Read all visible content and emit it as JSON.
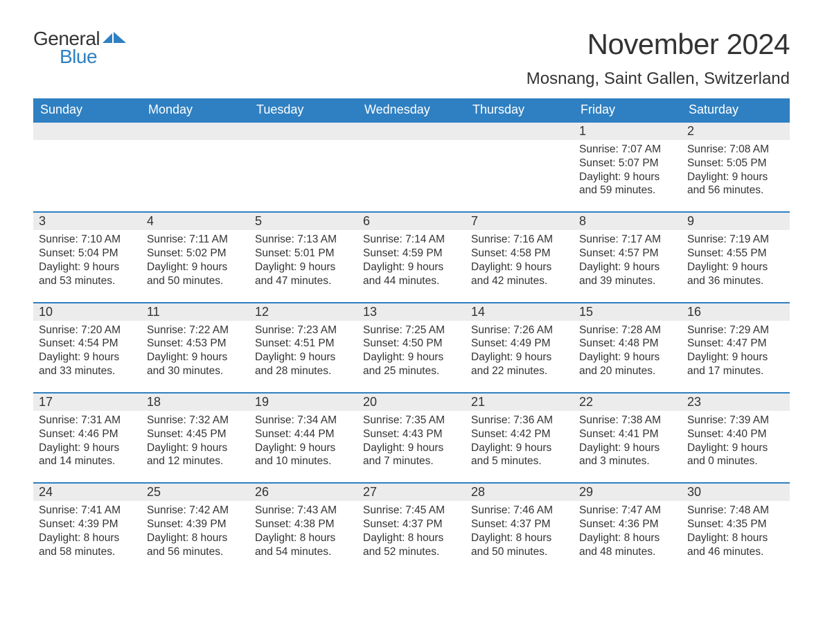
{
  "logo": {
    "general": "General",
    "blue": "Blue",
    "flag_color": "#2f80c2"
  },
  "title": "November 2024",
  "location": "Mosnang, Saint Gallen, Switzerland",
  "weekdays": [
    "Sunday",
    "Monday",
    "Tuesday",
    "Wednesday",
    "Thursday",
    "Friday",
    "Saturday"
  ],
  "colors": {
    "header_bg": "#2f80c2",
    "header_text": "#ffffff",
    "daynum_bg": "#ececec",
    "text": "#333333",
    "page_bg": "#ffffff",
    "row_border": "#2f80c2"
  },
  "typography": {
    "title_fontsize": 42,
    "location_fontsize": 24,
    "weekday_fontsize": 18,
    "daynum_fontsize": 18,
    "body_fontsize": 15.5
  },
  "layout": {
    "columns": 7,
    "rows": 5,
    "aspect": "1188x918"
  },
  "weeks": [
    [
      {
        "empty": true
      },
      {
        "empty": true
      },
      {
        "empty": true
      },
      {
        "empty": true
      },
      {
        "empty": true
      },
      {
        "day": "1",
        "sunrise": "Sunrise: 7:07 AM",
        "sunset": "Sunset: 5:07 PM",
        "daylight1": "Daylight: 9 hours",
        "daylight2": "and 59 minutes."
      },
      {
        "day": "2",
        "sunrise": "Sunrise: 7:08 AM",
        "sunset": "Sunset: 5:05 PM",
        "daylight1": "Daylight: 9 hours",
        "daylight2": "and 56 minutes."
      }
    ],
    [
      {
        "day": "3",
        "sunrise": "Sunrise: 7:10 AM",
        "sunset": "Sunset: 5:04 PM",
        "daylight1": "Daylight: 9 hours",
        "daylight2": "and 53 minutes."
      },
      {
        "day": "4",
        "sunrise": "Sunrise: 7:11 AM",
        "sunset": "Sunset: 5:02 PM",
        "daylight1": "Daylight: 9 hours",
        "daylight2": "and 50 minutes."
      },
      {
        "day": "5",
        "sunrise": "Sunrise: 7:13 AM",
        "sunset": "Sunset: 5:01 PM",
        "daylight1": "Daylight: 9 hours",
        "daylight2": "and 47 minutes."
      },
      {
        "day": "6",
        "sunrise": "Sunrise: 7:14 AM",
        "sunset": "Sunset: 4:59 PM",
        "daylight1": "Daylight: 9 hours",
        "daylight2": "and 44 minutes."
      },
      {
        "day": "7",
        "sunrise": "Sunrise: 7:16 AM",
        "sunset": "Sunset: 4:58 PM",
        "daylight1": "Daylight: 9 hours",
        "daylight2": "and 42 minutes."
      },
      {
        "day": "8",
        "sunrise": "Sunrise: 7:17 AM",
        "sunset": "Sunset: 4:57 PM",
        "daylight1": "Daylight: 9 hours",
        "daylight2": "and 39 minutes."
      },
      {
        "day": "9",
        "sunrise": "Sunrise: 7:19 AM",
        "sunset": "Sunset: 4:55 PM",
        "daylight1": "Daylight: 9 hours",
        "daylight2": "and 36 minutes."
      }
    ],
    [
      {
        "day": "10",
        "sunrise": "Sunrise: 7:20 AM",
        "sunset": "Sunset: 4:54 PM",
        "daylight1": "Daylight: 9 hours",
        "daylight2": "and 33 minutes."
      },
      {
        "day": "11",
        "sunrise": "Sunrise: 7:22 AM",
        "sunset": "Sunset: 4:53 PM",
        "daylight1": "Daylight: 9 hours",
        "daylight2": "and 30 minutes."
      },
      {
        "day": "12",
        "sunrise": "Sunrise: 7:23 AM",
        "sunset": "Sunset: 4:51 PM",
        "daylight1": "Daylight: 9 hours",
        "daylight2": "and 28 minutes."
      },
      {
        "day": "13",
        "sunrise": "Sunrise: 7:25 AM",
        "sunset": "Sunset: 4:50 PM",
        "daylight1": "Daylight: 9 hours",
        "daylight2": "and 25 minutes."
      },
      {
        "day": "14",
        "sunrise": "Sunrise: 7:26 AM",
        "sunset": "Sunset: 4:49 PM",
        "daylight1": "Daylight: 9 hours",
        "daylight2": "and 22 minutes."
      },
      {
        "day": "15",
        "sunrise": "Sunrise: 7:28 AM",
        "sunset": "Sunset: 4:48 PM",
        "daylight1": "Daylight: 9 hours",
        "daylight2": "and 20 minutes."
      },
      {
        "day": "16",
        "sunrise": "Sunrise: 7:29 AM",
        "sunset": "Sunset: 4:47 PM",
        "daylight1": "Daylight: 9 hours",
        "daylight2": "and 17 minutes."
      }
    ],
    [
      {
        "day": "17",
        "sunrise": "Sunrise: 7:31 AM",
        "sunset": "Sunset: 4:46 PM",
        "daylight1": "Daylight: 9 hours",
        "daylight2": "and 14 minutes."
      },
      {
        "day": "18",
        "sunrise": "Sunrise: 7:32 AM",
        "sunset": "Sunset: 4:45 PM",
        "daylight1": "Daylight: 9 hours",
        "daylight2": "and 12 minutes."
      },
      {
        "day": "19",
        "sunrise": "Sunrise: 7:34 AM",
        "sunset": "Sunset: 4:44 PM",
        "daylight1": "Daylight: 9 hours",
        "daylight2": "and 10 minutes."
      },
      {
        "day": "20",
        "sunrise": "Sunrise: 7:35 AM",
        "sunset": "Sunset: 4:43 PM",
        "daylight1": "Daylight: 9 hours",
        "daylight2": "and 7 minutes."
      },
      {
        "day": "21",
        "sunrise": "Sunrise: 7:36 AM",
        "sunset": "Sunset: 4:42 PM",
        "daylight1": "Daylight: 9 hours",
        "daylight2": "and 5 minutes."
      },
      {
        "day": "22",
        "sunrise": "Sunrise: 7:38 AM",
        "sunset": "Sunset: 4:41 PM",
        "daylight1": "Daylight: 9 hours",
        "daylight2": "and 3 minutes."
      },
      {
        "day": "23",
        "sunrise": "Sunrise: 7:39 AM",
        "sunset": "Sunset: 4:40 PM",
        "daylight1": "Daylight: 9 hours",
        "daylight2": "and 0 minutes."
      }
    ],
    [
      {
        "day": "24",
        "sunrise": "Sunrise: 7:41 AM",
        "sunset": "Sunset: 4:39 PM",
        "daylight1": "Daylight: 8 hours",
        "daylight2": "and 58 minutes."
      },
      {
        "day": "25",
        "sunrise": "Sunrise: 7:42 AM",
        "sunset": "Sunset: 4:39 PM",
        "daylight1": "Daylight: 8 hours",
        "daylight2": "and 56 minutes."
      },
      {
        "day": "26",
        "sunrise": "Sunrise: 7:43 AM",
        "sunset": "Sunset: 4:38 PM",
        "daylight1": "Daylight: 8 hours",
        "daylight2": "and 54 minutes."
      },
      {
        "day": "27",
        "sunrise": "Sunrise: 7:45 AM",
        "sunset": "Sunset: 4:37 PM",
        "daylight1": "Daylight: 8 hours",
        "daylight2": "and 52 minutes."
      },
      {
        "day": "28",
        "sunrise": "Sunrise: 7:46 AM",
        "sunset": "Sunset: 4:37 PM",
        "daylight1": "Daylight: 8 hours",
        "daylight2": "and 50 minutes."
      },
      {
        "day": "29",
        "sunrise": "Sunrise: 7:47 AM",
        "sunset": "Sunset: 4:36 PM",
        "daylight1": "Daylight: 8 hours",
        "daylight2": "and 48 minutes."
      },
      {
        "day": "30",
        "sunrise": "Sunrise: 7:48 AM",
        "sunset": "Sunset: 4:35 PM",
        "daylight1": "Daylight: 8 hours",
        "daylight2": "and 46 minutes."
      }
    ]
  ]
}
